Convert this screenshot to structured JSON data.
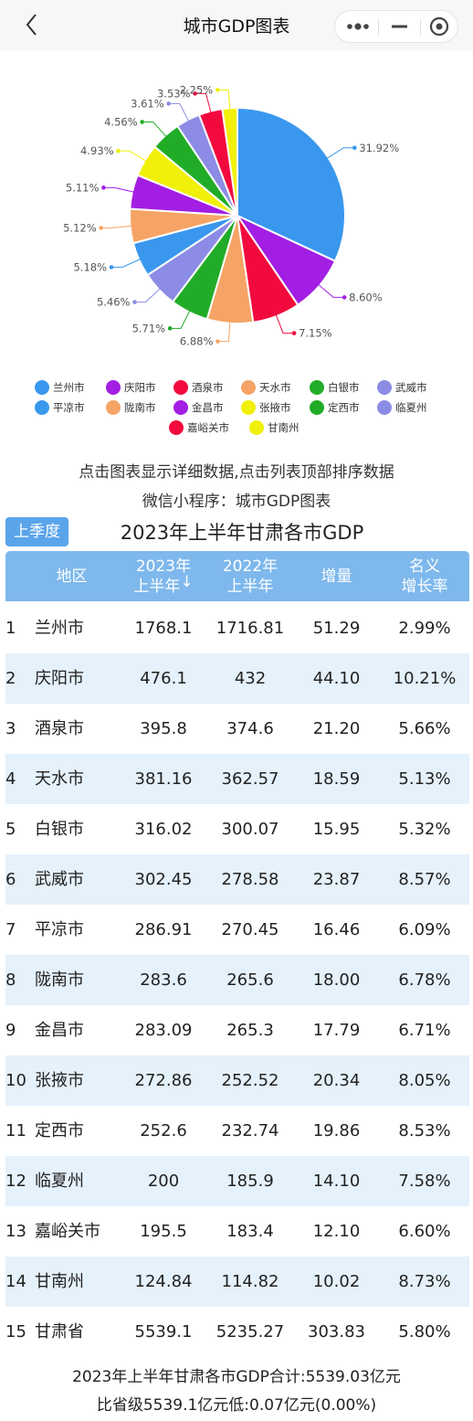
{
  "nav": {
    "title": "城市GDP图表"
  },
  "chart_data": {
    "type": "pie",
    "slices": [
      {
        "name": "兰州市",
        "value": 31.92,
        "label": "31.92%",
        "color": "#3a97ee"
      },
      {
        "name": "庆阳市",
        "value": 8.6,
        "label": "8.60%",
        "color": "#a21ee3"
      },
      {
        "name": "酒泉市",
        "value": 7.15,
        "label": "7.15%",
        "color": "#f20a3e"
      },
      {
        "name": "天水市",
        "value": 6.88,
        "label": "6.88%",
        "color": "#f5a466"
      },
      {
        "name": "白银市",
        "value": 5.71,
        "label": "5.71%",
        "color": "#21ac27"
      },
      {
        "name": "武威市",
        "value": 5.46,
        "label": "5.46%",
        "color": "#8c8ce6"
      },
      {
        "name": "平凉市",
        "value": 5.18,
        "label": "5.18%",
        "color": "#3a97ee"
      },
      {
        "name": "陇南市",
        "value": 5.12,
        "label": "5.12%",
        "color": "#f5a466"
      },
      {
        "name": "金昌市",
        "value": 5.11,
        "label": "5.11%",
        "color": "#a21ee3"
      },
      {
        "name": "张掖市",
        "value": 4.93,
        "label": "4.93%",
        "color": "#f0f00a"
      },
      {
        "name": "定西市",
        "value": 4.56,
        "label": "4.56%",
        "color": "#21ac27"
      },
      {
        "name": "临夏州",
        "value": 3.61,
        "label": "3.61%",
        "color": "#8c8ce6"
      },
      {
        "name": "嘉峪关市",
        "value": 3.53,
        "label": "3.53%",
        "color": "#f20a3e"
      },
      {
        "name": "甘南州",
        "value": 2.25,
        "label": "2.25%",
        "color": "#f0f00a"
      }
    ]
  },
  "legend_rows": [
    [
      "兰州市",
      "庆阳市",
      "酒泉市",
      "天水市",
      "白银市",
      "武威市"
    ],
    [
      "平凉市",
      "陇南市",
      "金昌市",
      "张掖市",
      "定西市",
      "临夏州"
    ],
    [
      "嘉峪关市",
      "甘南州"
    ]
  ],
  "hint": {
    "line1": "点击图表显示详细数据,点击列表顶部排序数据",
    "line2": "微信小程序：城市GDP图表"
  },
  "season_button": "上季度",
  "table": {
    "title": "2023年上半年甘肃各市GDP",
    "headers": {
      "region": "地区",
      "y2023_line1": "2023年",
      "y2023_line2": "上半年",
      "sort_arrow": "↓",
      "y2022_line1": "2022年",
      "y2022_line2": "上半年",
      "increase": "增量",
      "rate_line1": "名义",
      "rate_line2": "增长率"
    },
    "rows": [
      {
        "rank": "1",
        "region": "兰州市",
        "y2023": "1768.1",
        "y2022": "1716.81",
        "inc": "51.29",
        "rate": "2.99%"
      },
      {
        "rank": "2",
        "region": "庆阳市",
        "y2023": "476.1",
        "y2022": "432",
        "inc": "44.10",
        "rate": "10.21%"
      },
      {
        "rank": "3",
        "region": "酒泉市",
        "y2023": "395.8",
        "y2022": "374.6",
        "inc": "21.20",
        "rate": "5.66%"
      },
      {
        "rank": "4",
        "region": "天水市",
        "y2023": "381.16",
        "y2022": "362.57",
        "inc": "18.59",
        "rate": "5.13%"
      },
      {
        "rank": "5",
        "region": "白银市",
        "y2023": "316.02",
        "y2022": "300.07",
        "inc": "15.95",
        "rate": "5.32%"
      },
      {
        "rank": "6",
        "region": "武威市",
        "y2023": "302.45",
        "y2022": "278.58",
        "inc": "23.87",
        "rate": "8.57%"
      },
      {
        "rank": "7",
        "region": "平凉市",
        "y2023": "286.91",
        "y2022": "270.45",
        "inc": "16.46",
        "rate": "6.09%"
      },
      {
        "rank": "8",
        "region": "陇南市",
        "y2023": "283.6",
        "y2022": "265.6",
        "inc": "18.00",
        "rate": "6.78%"
      },
      {
        "rank": "9",
        "region": "金昌市",
        "y2023": "283.09",
        "y2022": "265.3",
        "inc": "17.79",
        "rate": "6.71%"
      },
      {
        "rank": "10",
        "region": "张掖市",
        "y2023": "272.86",
        "y2022": "252.52",
        "inc": "20.34",
        "rate": "8.05%"
      },
      {
        "rank": "11",
        "region": "定西市",
        "y2023": "252.6",
        "y2022": "232.74",
        "inc": "19.86",
        "rate": "8.53%"
      },
      {
        "rank": "12",
        "region": "临夏州",
        "y2023": "200",
        "y2022": "185.9",
        "inc": "14.10",
        "rate": "7.58%"
      },
      {
        "rank": "13",
        "region": "嘉峪关市",
        "y2023": "195.5",
        "y2022": "183.4",
        "inc": "12.10",
        "rate": "6.60%"
      },
      {
        "rank": "14",
        "region": "甘南州",
        "y2023": "124.84",
        "y2022": "114.82",
        "inc": "10.02",
        "rate": "8.73%"
      },
      {
        "rank": "15",
        "region": "甘肃省",
        "y2023": "5539.1",
        "y2022": "5235.27",
        "inc": "303.83",
        "rate": "5.80%"
      }
    ]
  },
  "footer": {
    "line1": "2023年上半年甘肃各市GDP合计:5539.03亿元",
    "line2": "比省级5539.1亿元低:0.07亿元(0.00%)"
  }
}
